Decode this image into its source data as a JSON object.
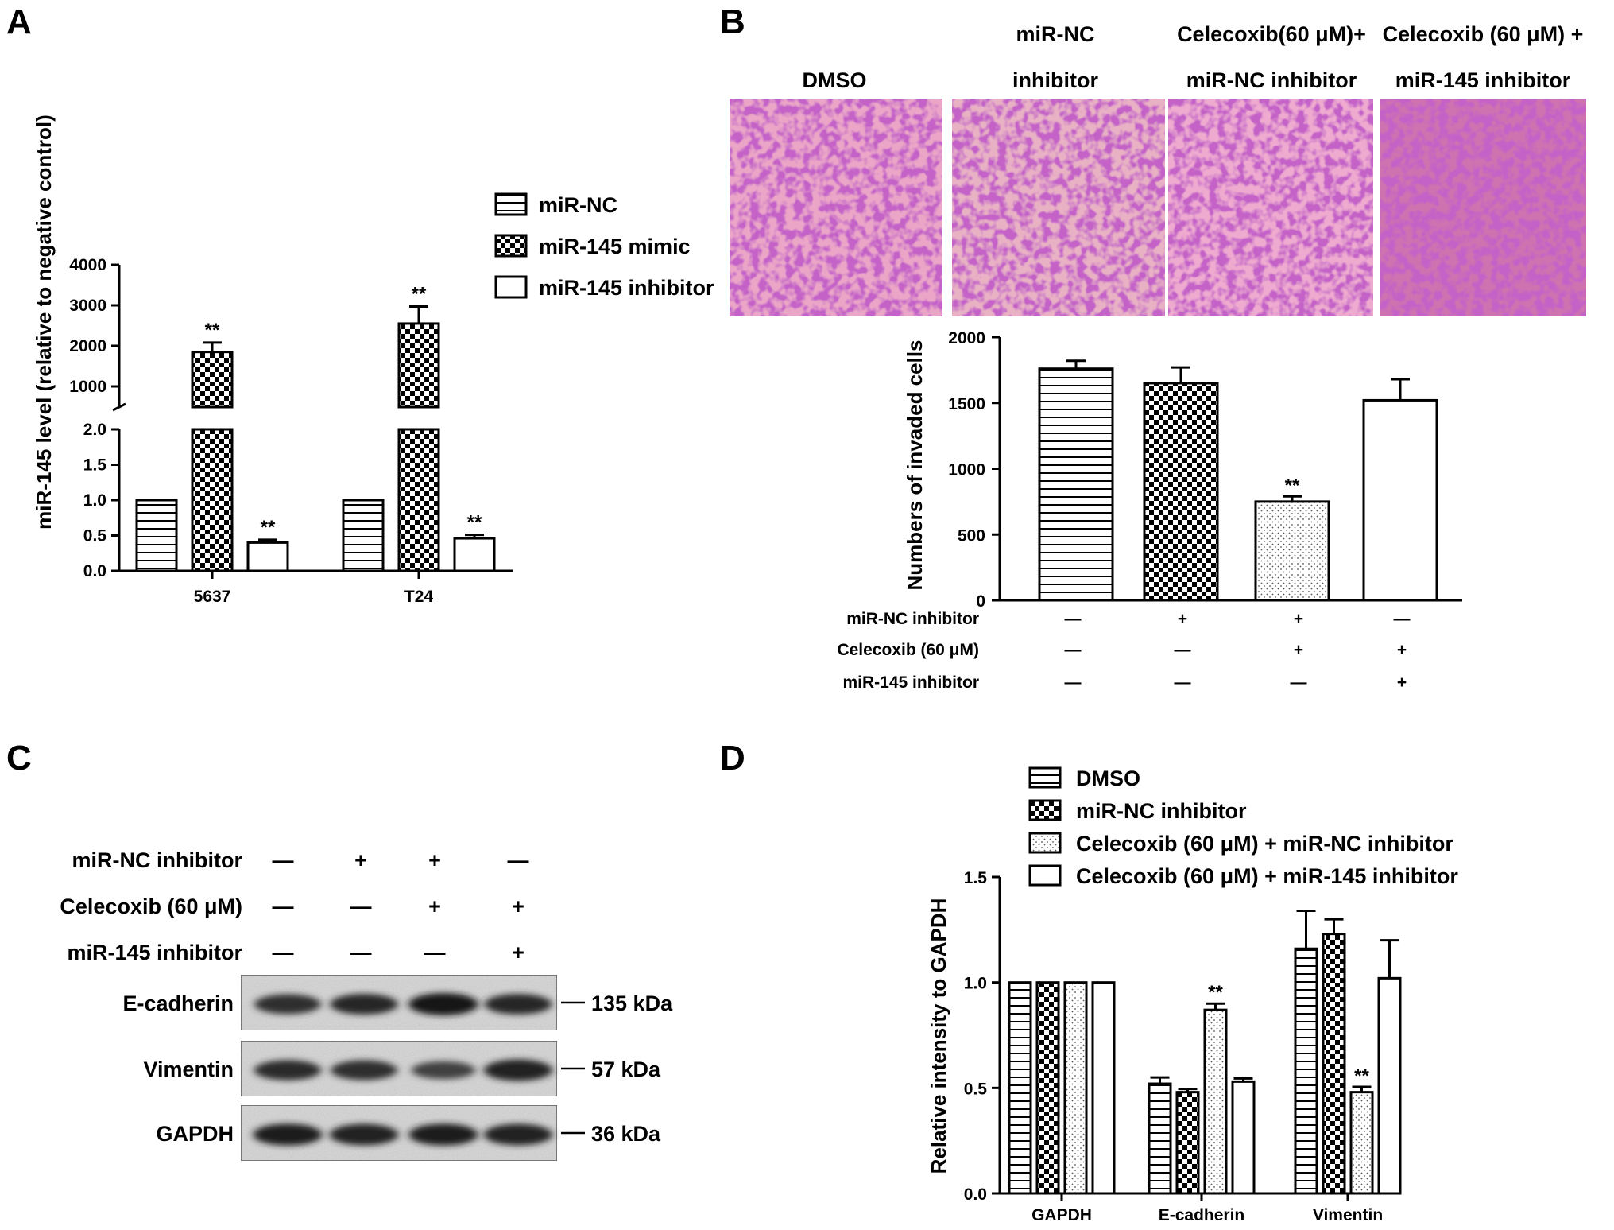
{
  "panels": {
    "A": {
      "letter": "A",
      "ylabel": "miR-145 level (relative to negative control)",
      "legend": [
        "miR-NC",
        "miR-145 mimic",
        "miR-145 inhibitor"
      ],
      "upper_ticks": [
        "4000",
        "3000",
        "2000",
        "1000"
      ],
      "lower_ticks": [
        "2.0",
        "1.5",
        "1.0",
        "0.5",
        "0.0"
      ]
    },
    "B": {
      "letter": "B",
      "image_headers": [
        {
          "line1": "",
          "line2": "DMSO"
        },
        {
          "line1": "miR-NC",
          "line2": "inhibitor"
        },
        {
          "line1": "Celecoxib(60 μM)+",
          "line2": "miR-NC inhibitor"
        },
        {
          "line1": "Celecoxib (60 μM) +",
          "line2": "miR-145 inhibitor"
        }
      ],
      "ylabel": "Numbers of invaded cells",
      "yticks": [
        "2000",
        "1500",
        "1000",
        "500",
        "0"
      ],
      "condition_rows": [
        {
          "label": "miR-NC inhibitor",
          "marks": [
            "—",
            "+",
            "+",
            "—"
          ]
        },
        {
          "label": "Celecoxib (60 μM)",
          "marks": [
            "—",
            "—",
            "+",
            "+"
          ]
        },
        {
          "label": "miR-145 inhibitor",
          "marks": [
            "—",
            "—",
            "—",
            "+"
          ]
        }
      ]
    },
    "C": {
      "letter": "C",
      "condition_rows": [
        {
          "label": "miR-NC inhibitor",
          "marks": [
            "—",
            "+",
            "+",
            "—"
          ]
        },
        {
          "label": "Celecoxib (60 μM)",
          "marks": [
            "—",
            "—",
            "+",
            "+"
          ]
        },
        {
          "label": "miR-145 inhibitor",
          "marks": [
            "—",
            "—",
            "—",
            "+"
          ]
        }
      ],
      "blots": [
        {
          "protein": "E-cadherin",
          "size": "135 kDa",
          "intensity": [
            0.78,
            0.86,
            1.0,
            0.84
          ]
        },
        {
          "protein": "Vimentin",
          "size": "57 kDa",
          "intensity": [
            0.8,
            0.78,
            0.6,
            0.92
          ]
        },
        {
          "protein": "GAPDH",
          "size": "36 kDa",
          "intensity": [
            0.95,
            0.92,
            0.95,
            0.92
          ]
        }
      ]
    },
    "D": {
      "letter": "D",
      "ylabel": "Relative intensity to  GAPDH",
      "legend": [
        "DMSO",
        "miR-NC inhibitor",
        "Celecoxib (60 μM) + miR-NC inhibitor",
        "Celecoxib (60 μM) + miR-145 inhibitor"
      ],
      "yticks": [
        "1.5",
        "1.0",
        "0.5",
        "0.0"
      ]
    }
  },
  "chart_data": [
    {
      "id": "A",
      "type": "bar",
      "title": "",
      "xlabel": "",
      "ylabel": "miR-145 level (relative to negative control)",
      "broken_axis": {
        "lower_range": [
          0,
          2.0
        ],
        "upper_range": [
          0,
          4000
        ]
      },
      "categories": [
        "5637",
        "T24"
      ],
      "series": [
        {
          "name": "miR-NC",
          "pattern": "hlines",
          "values": [
            1.0,
            1.0
          ],
          "errors": [
            0,
            0
          ],
          "significance": [
            "",
            ""
          ]
        },
        {
          "name": "miR-145 mimic",
          "pattern": "checker",
          "values": [
            1850,
            2550
          ],
          "errors": [
            230,
            420
          ],
          "significance": [
            "**",
            "**"
          ]
        },
        {
          "name": "miR-145 inhibitor",
          "pattern": "empty",
          "values": [
            0.4,
            0.46
          ],
          "errors": [
            0.04,
            0.05
          ],
          "significance": [
            "**",
            "**"
          ]
        }
      ]
    },
    {
      "id": "B",
      "type": "bar",
      "title": "",
      "xlabel": "",
      "ylabel": "Numbers of invaded cells",
      "ylim": [
        0,
        2000
      ],
      "categories": [
        "DMSO",
        "miR-NC inhibitor",
        "Celecoxib (60 μM) + miR-NC inhibitor",
        "Celecoxib (60 μM) + miR-145 inhibitor"
      ],
      "values": [
        1760,
        1650,
        750,
        1520
      ],
      "errors": [
        60,
        120,
        40,
        160
      ],
      "patterns": [
        "hlines",
        "checker",
        "dots",
        "empty"
      ],
      "significance": [
        "",
        "",
        "**",
        ""
      ]
    },
    {
      "id": "D",
      "type": "bar",
      "title": "",
      "xlabel": "",
      "ylabel": "Relative intensity to  GAPDH",
      "ylim": [
        0,
        1.5
      ],
      "categories": [
        "GAPDH",
        "E-cadherin",
        "Vimentin"
      ],
      "series": [
        {
          "name": "DMSO",
          "pattern": "hlines",
          "values": [
            1.0,
            0.52,
            1.16
          ],
          "errors": [
            0,
            0.03,
            0.18
          ],
          "significance": [
            "",
            "",
            ""
          ]
        },
        {
          "name": "miR-NC inhibitor",
          "pattern": "checker",
          "values": [
            1.0,
            0.48,
            1.23
          ],
          "errors": [
            0,
            0.015,
            0.07
          ],
          "significance": [
            "",
            "",
            ""
          ]
        },
        {
          "name": "Celecoxib (60 μM) + miR-NC inhibitor",
          "pattern": "dots",
          "values": [
            1.0,
            0.87,
            0.48
          ],
          "errors": [
            0,
            0.03,
            0.025
          ],
          "significance": [
            "",
            "**",
            "**"
          ]
        },
        {
          "name": "Celecoxib (60 μM) + miR-145 inhibitor",
          "pattern": "empty",
          "values": [
            1.0,
            0.53,
            1.02
          ],
          "errors": [
            0,
            0.015,
            0.18
          ],
          "significance": [
            "",
            "",
            ""
          ]
        }
      ]
    }
  ]
}
